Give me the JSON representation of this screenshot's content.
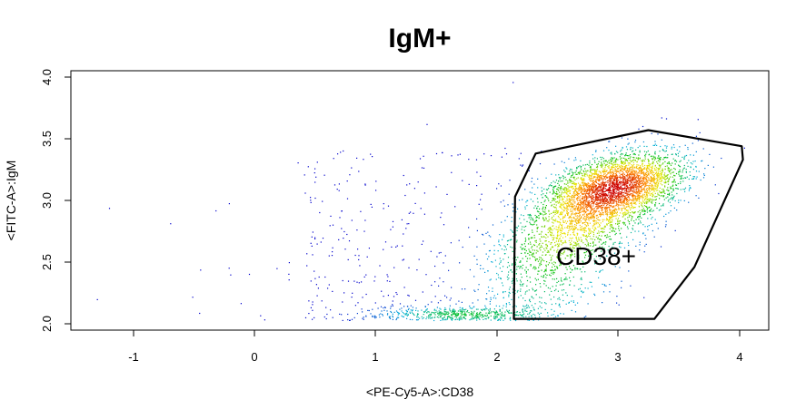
{
  "chart_data": {
    "type": "scatter",
    "title": "IgM+",
    "xlabel": "<PE-Cy5-A>:CD38",
    "ylabel": "<FITC-A>:IgM",
    "xlim": [
      -1.4,
      4.25
    ],
    "ylim": [
      1.95,
      4.05
    ],
    "xticks": [
      -1,
      0,
      1,
      2,
      3,
      4
    ],
    "xtick_labels": [
      "-1",
      "0",
      "1",
      "2",
      "3",
      "4"
    ],
    "yticks": [
      2.0,
      2.5,
      3.0,
      3.5,
      4.0
    ],
    "ytick_labels": [
      "2.0",
      "2.5",
      "3.0",
      "3.5",
      "4.0"
    ],
    "grid": false,
    "legend": "none",
    "color_scale": [
      "#0000cc",
      "#00b0d8",
      "#00c000",
      "#e8e800",
      "#ff8800",
      "#cc0000"
    ],
    "density_clusters": [
      {
        "x": 2.98,
        "y": 3.12,
        "sx": 0.28,
        "sy": 0.14,
        "rho": 0.4,
        "weight": 0.55
      },
      {
        "x": 2.72,
        "y": 2.85,
        "sx": 0.32,
        "sy": 0.2,
        "rho": 0.55,
        "weight": 0.25
      },
      {
        "x": 2.45,
        "y": 2.45,
        "sx": 0.3,
        "sy": 0.25,
        "rho": 0.3,
        "weight": 0.1
      },
      {
        "x": 1.7,
        "y": 2.08,
        "sx": 0.35,
        "sy": 0.035,
        "rho": 0.0,
        "weight": 0.1
      }
    ],
    "gate": {
      "label": "CD38+",
      "vertices": [
        [
          2.15,
          3.03
        ],
        [
          2.32,
          3.38
        ],
        [
          3.25,
          3.57
        ],
        [
          4.02,
          3.44
        ],
        [
          4.03,
          3.33
        ],
        [
          3.63,
          2.46
        ],
        [
          3.3,
          2.04
        ],
        [
          2.14,
          2.04
        ]
      ]
    }
  }
}
